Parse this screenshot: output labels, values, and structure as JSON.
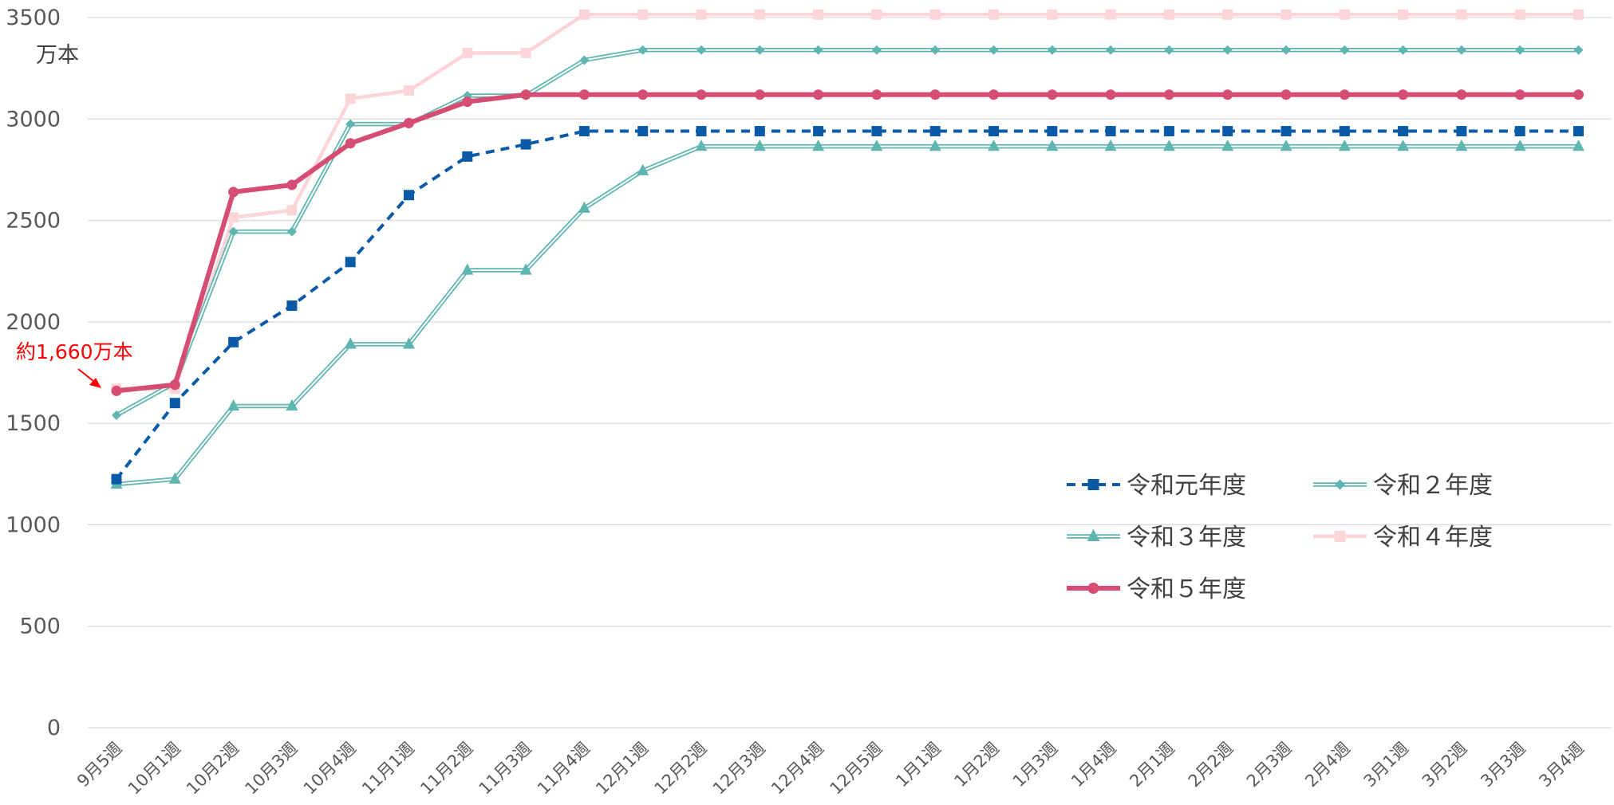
{
  "chart_data": {
    "type": "line",
    "ylabel": "万本",
    "ylim": [
      0,
      3500
    ],
    "yticks": [
      0,
      500,
      1000,
      1500,
      2000,
      2500,
      3000,
      3500
    ],
    "grid": true,
    "legend_position": "bottom-right (inside plot)",
    "categories": [
      "9月5週",
      "10月1週",
      "10月2週",
      "10月3週",
      "10月4週",
      "11月1週",
      "11月2週",
      "11月3週",
      "11月4週",
      "12月1週",
      "12月2週",
      "12月3週",
      "12月4週",
      "12月5週",
      "1月1週",
      "1月2週",
      "1月3週",
      "1月4週",
      "2月1週",
      "2月2週",
      "2月3週",
      "2月4週",
      "3月1週",
      "3月2週",
      "3月3週",
      "3月4週"
    ],
    "series": [
      {
        "name": "令和元年度",
        "color": "#0b5aa8",
        "style": "dashed",
        "marker": "square",
        "values": [
          1225,
          1600,
          1900,
          2080,
          2295,
          2625,
          2815,
          2875,
          2940,
          2940,
          2940,
          2940,
          2940,
          2940,
          2940,
          2940,
          2940,
          2940,
          2940,
          2940,
          2940,
          2940,
          2940,
          2940,
          2940,
          2940
        ]
      },
      {
        "name": "令和２年度",
        "color": "#5fb5b0",
        "style": "double",
        "marker": "diamond",
        "values": [
          1540,
          1700,
          2445,
          2445,
          2975,
          2975,
          3115,
          3115,
          3290,
          3340,
          3340,
          3340,
          3340,
          3340,
          3340,
          3340,
          3340,
          3340,
          3340,
          3340,
          3340,
          3340,
          3340,
          3340,
          3340,
          3340
        ]
      },
      {
        "name": "令和３年度",
        "color": "#5fb5b0",
        "style": "double",
        "marker": "triangle",
        "values": [
          1200,
          1225,
          1585,
          1585,
          1890,
          1890,
          2255,
          2255,
          2560,
          2745,
          2865,
          2865,
          2865,
          2865,
          2865,
          2865,
          2865,
          2865,
          2865,
          2865,
          2865,
          2865,
          2865,
          2865,
          2865,
          2865
        ]
      },
      {
        "name": "令和４年度",
        "color": "#fbd5d8",
        "style": "solid",
        "marker": "square",
        "values": [
          1670,
          1670,
          2515,
          2550,
          3100,
          3140,
          3325,
          3325,
          3515,
          3515,
          3515,
          3515,
          3515,
          3515,
          3515,
          3515,
          3515,
          3515,
          3515,
          3515,
          3515,
          3515,
          3515,
          3515,
          3515,
          3515
        ]
      },
      {
        "name": "令和５年度",
        "color": "#d64d73",
        "style": "bold",
        "marker": "circle",
        "values": [
          1660,
          1690,
          2640,
          2675,
          2880,
          2980,
          3085,
          3120,
          3120,
          3120,
          3120,
          3120,
          3120,
          3120,
          3120,
          3120,
          3120,
          3120,
          3120,
          3120,
          3120,
          3120,
          3120,
          3120,
          3120,
          3120
        ]
      }
    ],
    "annotations": [
      {
        "text": "約1,660万本",
        "color": "#ff0000",
        "category": "9月5週",
        "value": 1660
      }
    ]
  }
}
